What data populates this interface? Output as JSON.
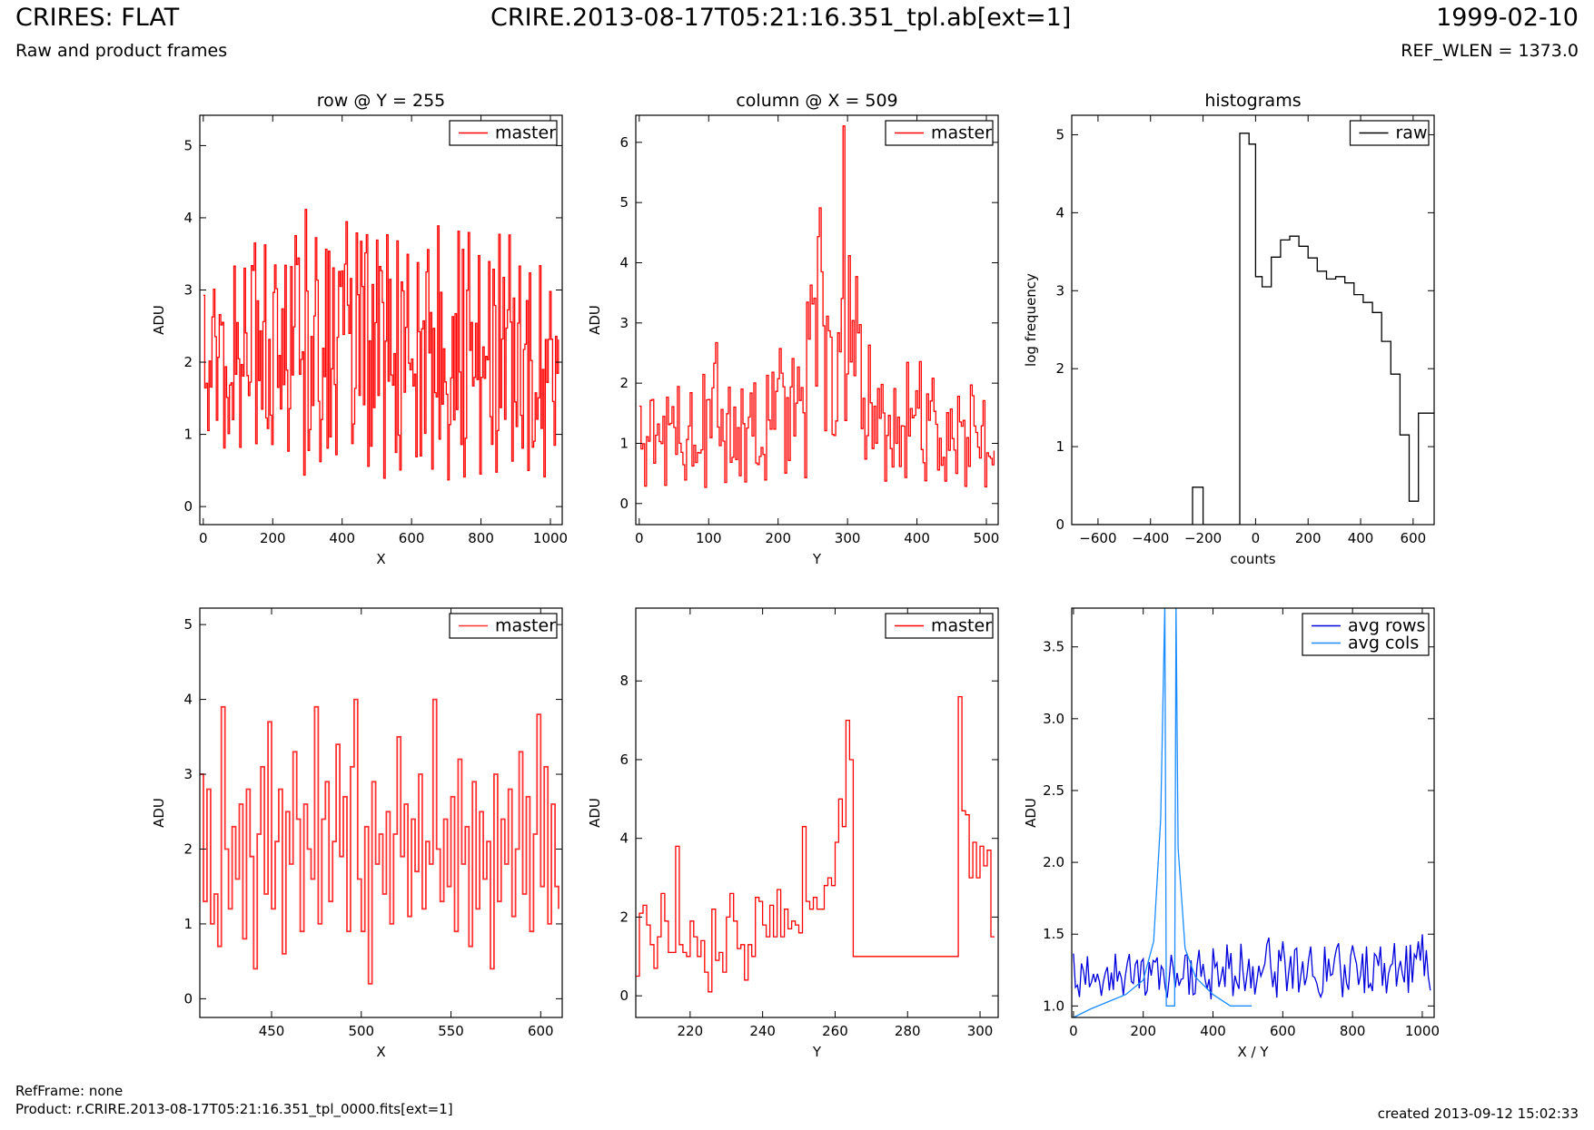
{
  "header": {
    "title_left": "CRIRES: FLAT",
    "subtitle_left": "Raw and product frames",
    "title_center": "CRIRE.2013-08-17T05:21:16.351_tpl.ab[ext=1]",
    "title_right": "1999-02-10",
    "subtitle_right": "REF_WLEN = 1373.0"
  },
  "footer": {
    "refframe": "RefFrame: none",
    "product": "Product: r.CRIRE.2013-08-17T05:21:16.351_tpl_0000.fits[ext=1]",
    "created": "created 2013-09-12 15:02:33"
  },
  "chart_data": [
    {
      "id": "row_full",
      "type": "line",
      "style": "steps",
      "title": "row @ Y = 255",
      "xlabel": "X",
      "ylabel": "ADU",
      "xlim": [
        -10,
        1034
      ],
      "ylim": [
        -0.25,
        5.42
      ],
      "xticks": [
        0,
        200,
        400,
        600,
        800,
        1000
      ],
      "yticks": [
        0,
        1,
        2,
        3,
        4,
        5
      ],
      "legend": "top-right",
      "series": [
        {
          "name": "master",
          "color": "#ff0000",
          "x": [
            0,
            32,
            64,
            96,
            128,
            160,
            192,
            224,
            256,
            288,
            320,
            352,
            384,
            416,
            448,
            480,
            512,
            544,
            576,
            608,
            640,
            672,
            704,
            736,
            768,
            800,
            832,
            864,
            896,
            928,
            960,
            992,
            1023
          ],
          "y_min": [
            1.0,
            0.9,
            0.55,
            0.8,
            0.7,
            0.9,
            0.8,
            1.0,
            0.6,
            0.35,
            0.7,
            0.25,
            0.5,
            0.85,
            0.6,
            0.5,
            0.3,
            0.4,
            0.55,
            0.7,
            0.25,
            0.4,
            0.3,
            0.25,
            0.5,
            0.35,
            0.3,
            0.6,
            0.5,
            0.3,
            0.4,
            0.3,
            1.0
          ],
          "y_max": [
            3.0,
            3.1,
            4.2,
            3.2,
            3.5,
            4.1,
            3.5,
            3.4,
            3.6,
            4.2,
            3.8,
            3.6,
            3.9,
            4.0,
            4.0,
            3.7,
            4.0,
            3.9,
            3.7,
            3.5,
            3.8,
            4.0,
            3.5,
            3.9,
            3.8,
            3.5,
            3.6,
            3.9,
            3.8,
            3.3,
            3.5,
            3.1,
            2.7
          ]
        }
      ]
    },
    {
      "id": "col_full",
      "type": "line",
      "style": "steps",
      "title": "column @ X = 509",
      "xlabel": "Y",
      "ylabel": "ADU",
      "xlim": [
        -5,
        517
      ],
      "ylim": [
        -0.35,
        6.45
      ],
      "xticks": [
        0,
        100,
        200,
        300,
        400,
        500
      ],
      "yticks": [
        0,
        1,
        2,
        3,
        4,
        5,
        6
      ],
      "legend": "top-right",
      "series": [
        {
          "name": "master",
          "color": "#ff0000",
          "x": [
            0,
            16,
            32,
            48,
            64,
            80,
            96,
            112,
            128,
            144,
            160,
            176,
            192,
            208,
            224,
            240,
            256,
            265,
            280,
            294,
            304,
            320,
            336,
            352,
            368,
            384,
            400,
            416,
            432,
            448,
            464,
            480,
            496,
            511
          ],
          "y_min": [
            0.2,
            0.3,
            0.25,
            0.4,
            0.3,
            0.3,
            0.15,
            0.3,
            0.2,
            0.3,
            0.25,
            0.3,
            0.4,
            0.5,
            0.4,
            0.35,
            0.7,
            1.0,
            1.0,
            1.0,
            1.5,
            0.8,
            0.3,
            0.3,
            0.4,
            0.3,
            0.2,
            0.3,
            0.2,
            0.3,
            0.3,
            0.25,
            0.2,
            0.2
          ],
          "y_max": [
            1.7,
            1.8,
            1.9,
            2.1,
            1.9,
            2.0,
            2.3,
            2.9,
            2.0,
            1.9,
            2.1,
            2.0,
            2.6,
            2.7,
            2.5,
            3.8,
            4.3,
            6.5,
            1.0,
            6.5,
            4.1,
            3.5,
            2.2,
            2.0,
            2.0,
            2.4,
            2.6,
            2.3,
            1.9,
            1.8,
            1.9,
            2.0,
            1.7,
            1.0
          ]
        }
      ]
    },
    {
      "id": "histogram",
      "type": "line",
      "style": "steps",
      "title": "histograms",
      "xlabel": "counts",
      "ylabel": "log frequency",
      "xlim": [
        -700,
        680
      ],
      "ylim": [
        0,
        5.25
      ],
      "xticks": [
        -600,
        -400,
        -200,
        0,
        200,
        400,
        600
      ],
      "yticks": [
        0,
        1,
        2,
        3,
        4,
        5
      ],
      "legend": "top-right",
      "series": [
        {
          "name": "raw",
          "color": "#000000",
          "x": [
            -700,
            -240,
            -200,
            -60,
            -25,
            0,
            25,
            60,
            95,
            130,
            165,
            200,
            235,
            270,
            305,
            340,
            375,
            410,
            445,
            480,
            515,
            550,
            585,
            620,
            655,
            680
          ],
          "y": [
            0,
            0.48,
            0,
            5.02,
            4.88,
            3.18,
            3.05,
            3.43,
            3.65,
            3.7,
            3.57,
            3.42,
            3.25,
            3.15,
            3.18,
            3.1,
            2.95,
            2.85,
            2.72,
            2.35,
            1.93,
            1.15,
            0.3,
            1.43,
            1.43,
            1.43
          ]
        }
      ]
    },
    {
      "id": "row_zoom",
      "type": "line",
      "style": "steps",
      "title": "",
      "xlabel": "X",
      "ylabel": "ADU",
      "xlim": [
        410,
        612
      ],
      "ylim": [
        -0.25,
        5.22
      ],
      "xticks": [
        450,
        500,
        550,
        600
      ],
      "yticks": [
        0,
        1,
        2,
        3,
        4,
        5
      ],
      "legend": "top-right",
      "series": [
        {
          "name": "master",
          "color": "#ff3333",
          "x": [
            410,
            412,
            414,
            416,
            418,
            420,
            422,
            424,
            426,
            428,
            430,
            432,
            434,
            436,
            438,
            440,
            442,
            444,
            446,
            448,
            450,
            452,
            454,
            456,
            458,
            460,
            462,
            464,
            466,
            468,
            470,
            472,
            474,
            476,
            478,
            480,
            482,
            484,
            486,
            488,
            490,
            492,
            494,
            496,
            498,
            500,
            502,
            504,
            506,
            508,
            510,
            512,
            514,
            516,
            518,
            520,
            522,
            524,
            526,
            528,
            530,
            532,
            534,
            536,
            538,
            540,
            542,
            544,
            546,
            548,
            550,
            552,
            554,
            556,
            558,
            560,
            562,
            564,
            566,
            568,
            570,
            572,
            574,
            576,
            578,
            580,
            582,
            584,
            586,
            588,
            590,
            592,
            594,
            596,
            598,
            600,
            602,
            604,
            606,
            608,
            610
          ],
          "y": [
            3.0,
            1.3,
            2.8,
            1.0,
            1.4,
            0.7,
            3.9,
            2.0,
            1.2,
            2.3,
            1.6,
            2.6,
            0.8,
            2.8,
            1.9,
            0.4,
            2.2,
            3.1,
            1.4,
            3.7,
            1.2,
            2.1,
            2.8,
            0.6,
            2.5,
            1.8,
            3.3,
            2.4,
            0.9,
            2.6,
            2.0,
            1.6,
            3.9,
            1.0,
            2.4,
            2.9,
            1.3,
            2.1,
            3.4,
            1.9,
            2.7,
            0.9,
            3.1,
            4.0,
            1.6,
            0.9,
            2.3,
            0.2,
            2.9,
            1.8,
            2.2,
            1.4,
            2.5,
            1.0,
            2.2,
            3.5,
            1.9,
            2.6,
            1.1,
            2.4,
            1.7,
            3.0,
            1.2,
            2.1,
            1.8,
            4.0,
            2.0,
            1.3,
            2.4,
            1.5,
            2.7,
            0.9,
            3.2,
            1.8,
            2.3,
            0.7,
            2.9,
            1.2,
            2.5,
            1.6,
            2.1,
            0.4,
            3.0,
            1.3,
            2.4,
            1.8,
            2.8,
            1.1,
            2.0,
            3.3,
            1.4,
            2.7,
            0.9,
            2.2,
            3.8,
            1.5,
            3.1,
            1.0,
            2.6,
            1.5,
            1.2
          ]
        }
      ]
    },
    {
      "id": "col_zoom",
      "type": "line",
      "style": "steps",
      "title": "",
      "xlabel": "Y",
      "ylabel": "ADU",
      "xlim": [
        205,
        305
      ],
      "ylim": [
        -0.55,
        9.85
      ],
      "xticks": [
        220,
        240,
        260,
        280,
        300
      ],
      "yticks": [
        0,
        2,
        4,
        6,
        8
      ],
      "legend": "top-right",
      "series": [
        {
          "name": "master",
          "color": "#ff0000",
          "x": [
            205,
            206,
            207,
            208,
            209,
            210,
            211,
            212,
            213,
            214,
            215,
            216,
            217,
            218,
            219,
            220,
            221,
            222,
            223,
            224,
            225,
            226,
            227,
            228,
            229,
            230,
            231,
            232,
            233,
            234,
            235,
            236,
            237,
            238,
            239,
            240,
            241,
            242,
            243,
            244,
            245,
            246,
            247,
            248,
            249,
            250,
            251,
            252,
            253,
            254,
            255,
            256,
            257,
            258,
            259,
            260,
            261,
            262,
            263,
            264,
            265,
            294,
            295,
            296,
            297,
            298,
            299,
            300,
            301,
            302,
            303,
            304
          ],
          "y": [
            0.5,
            2.1,
            2.3,
            1.8,
            1.3,
            0.7,
            1.5,
            2.6,
            1.9,
            1.1,
            1.1,
            3.8,
            1.3,
            1.1,
            1.0,
            1.9,
            1.5,
            1.0,
            1.4,
            0.6,
            0.1,
            2.2,
            0.9,
            1.1,
            0.6,
            2.0,
            2.6,
            1.9,
            1.2,
            1.3,
            0.4,
            1.3,
            1.0,
            2.5,
            2.4,
            1.8,
            1.5,
            2.3,
            1.5,
            2.7,
            1.5,
            2.2,
            1.7,
            1.9,
            1.8,
            1.6,
            4.3,
            2.4,
            2.2,
            2.5,
            2.2,
            2.2,
            2.8,
            3.0,
            2.8,
            3.9,
            5.0,
            4.3,
            7.0,
            6.0,
            1.0,
            7.6,
            4.7,
            4.6,
            3.0,
            3.9,
            3.0,
            3.8,
            3.3,
            3.7,
            1.5,
            1.5
          ]
        }
      ]
    },
    {
      "id": "averages",
      "type": "line",
      "title": "",
      "xlabel": "X / Y",
      "ylabel": "ADU",
      "xlim": [
        -5,
        1034
      ],
      "ylim": [
        0.92,
        3.77
      ],
      "xticks": [
        0,
        200,
        400,
        600,
        800,
        1000
      ],
      "yticks": [
        1.0,
        1.5,
        2.0,
        2.5,
        3.0,
        3.5
      ],
      "legend": "top-right",
      "series": [
        {
          "name": "avg rows",
          "color": "#0000dd",
          "x": [
            0,
            50,
            100,
            150,
            200,
            250,
            300,
            350,
            400,
            450,
            500,
            550,
            600,
            650,
            700,
            750,
            800,
            850,
            900,
            950,
            1000,
            1023
          ],
          "y_min": [
            1.05,
            1.05,
            1.07,
            1.06,
            1.06,
            1.05,
            1.06,
            1.05,
            1.04,
            1.06,
            1.05,
            1.05,
            1.06,
            1.07,
            1.05,
            1.05,
            1.06,
            1.06,
            1.07,
            1.07,
            1.08,
            1.1
          ],
          "y_max": [
            1.38,
            1.36,
            1.37,
            1.38,
            1.35,
            1.36,
            1.36,
            1.39,
            1.42,
            1.45,
            1.45,
            1.5,
            1.46,
            1.42,
            1.42,
            1.45,
            1.43,
            1.44,
            1.44,
            1.47,
            1.52,
            1.4
          ]
        },
        {
          "name": "avg cols",
          "color": "#1a8cff",
          "x": [
            0,
            50,
            100,
            150,
            200,
            230,
            250,
            262,
            266,
            290,
            294,
            300,
            320,
            350,
            400,
            450,
            511
          ],
          "y": [
            0.92,
            0.98,
            1.03,
            1.08,
            1.18,
            1.45,
            2.3,
            3.8,
            1.0,
            1.0,
            3.8,
            2.1,
            1.4,
            1.2,
            1.08,
            1.0,
            1.0
          ]
        }
      ]
    }
  ]
}
